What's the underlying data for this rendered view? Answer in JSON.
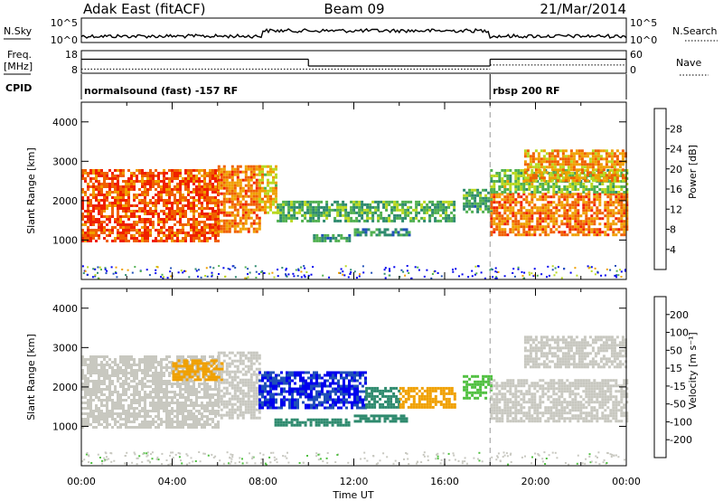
{
  "header": {
    "station": "Adak East (fitACF)",
    "beam": "Beam 09",
    "date": "21/Mar/2014"
  },
  "summary": {
    "nsky_label": "N.Sky",
    "nsearch_label": "N.Search",
    "freq_label": "Freq.",
    "freq_unit": "[MHz]",
    "nave_label": "Nave",
    "cpid_label": "CPID",
    "nsky_ticks": [
      "10^5",
      "10^0"
    ],
    "nsearch_ticks": [
      "10^5",
      "10^0"
    ],
    "freq_ticks": [
      "18",
      "8"
    ],
    "nave_ticks": [
      "60",
      "0"
    ],
    "cpid_segments": [
      {
        "label": "normalsound (fast) -157 RF",
        "start": 0,
        "end": 18
      },
      {
        "label": "rbsp 200 RF",
        "start": 18,
        "end": 24
      }
    ],
    "freq_series": [
      {
        "start": 0,
        "end": 10,
        "value": 14.2
      },
      {
        "start": 10,
        "end": 18,
        "value": 11.2
      },
      {
        "start": 18,
        "end": 24,
        "value": 14.2
      }
    ],
    "nave_series": [
      {
        "start": 0,
        "end": 18,
        "value": 11
      },
      {
        "start": 18,
        "end": 24,
        "value": 22
      }
    ]
  },
  "chart_data": [
    {
      "type": "heatmap",
      "parameter": "power",
      "ylabel": "Slant Range [km]",
      "xlabel": "",
      "xlim": [
        0,
        24
      ],
      "ylim": [
        0,
        4500
      ],
      "yticks": [
        "1000",
        "2000",
        "3000",
        "4000"
      ],
      "colorbar": {
        "label": "Power [dB]",
        "ticks": [
          "4",
          "8",
          "12",
          "16",
          "20",
          "24",
          "28"
        ],
        "range": [
          0,
          32
        ],
        "colors": [
          "#0000ee",
          "#2050b8",
          "#2e8a6e",
          "#50b050",
          "#b8d820",
          "#f0a000",
          "#f06000",
          "#f02000",
          "#e00000"
        ]
      },
      "echo_regions": [
        {
          "t0": 0.0,
          "t1": 6.0,
          "r0": 950,
          "r1": 2800,
          "level": 24
        },
        {
          "t0": 6.0,
          "t1": 7.8,
          "r0": 1200,
          "r1": 2900,
          "level": 22
        },
        {
          "t0": 7.8,
          "t1": 8.6,
          "r0": 1700,
          "r1": 2900,
          "level": 18
        },
        {
          "t0": 8.6,
          "t1": 16.4,
          "r0": 1450,
          "r1": 2000,
          "level": 12
        },
        {
          "t0": 10.2,
          "t1": 11.8,
          "r0": 1000,
          "r1": 1150,
          "level": 10
        },
        {
          "t0": 12.0,
          "t1": 14.5,
          "r0": 1150,
          "r1": 1300,
          "level": 9
        },
        {
          "t0": 16.8,
          "t1": 18.0,
          "r0": 1700,
          "r1": 2300,
          "level": 11
        },
        {
          "t0": 18.0,
          "t1": 24.0,
          "r0": 1100,
          "r1": 2200,
          "level": 22
        },
        {
          "t0": 18.0,
          "t1": 24.0,
          "r0": 2200,
          "r1": 2800,
          "level": 14
        },
        {
          "t0": 19.5,
          "t1": 24.0,
          "r0": 2500,
          "r1": 3300,
          "level": 20
        }
      ]
    },
    {
      "type": "heatmap",
      "parameter": "velocity",
      "ylabel": "Slant Range [km]",
      "xlabel": "Time UT",
      "xlim": [
        0,
        24
      ],
      "ylim": [
        0,
        4500
      ],
      "xticks": [
        "00:00",
        "04:00",
        "08:00",
        "12:00",
        "16:00",
        "20:00",
        "00:00"
      ],
      "yticks": [
        "1000",
        "2000",
        "3000",
        "4000"
      ],
      "colorbar": {
        "label": "Velocity [m s⁻¹]",
        "ticks": [
          "200",
          "100",
          "50",
          "15",
          "-15",
          "-50",
          "-100",
          "-200"
        ],
        "colors": [
          "#0000ee",
          "#2050b8",
          "#2e8a6e",
          "#50c040",
          "#c8c8c0",
          "#f0a000",
          "#f06000",
          "#f02000",
          "#e00000"
        ]
      },
      "echo_regions": [
        {
          "t0": 0.0,
          "t1": 6.0,
          "r0": 950,
          "r1": 2800,
          "level": 0
        },
        {
          "t0": 4.0,
          "t1": 6.2,
          "r0": 2200,
          "r1": 2700,
          "level": -40
        },
        {
          "t0": 6.0,
          "t1": 7.8,
          "r0": 1200,
          "r1": 2900,
          "level": 0
        },
        {
          "t0": 7.8,
          "t1": 12.5,
          "r0": 1450,
          "r1": 2400,
          "level": 200
        },
        {
          "t0": 12.5,
          "t1": 14.0,
          "r0": 1450,
          "r1": 2000,
          "level": 60
        },
        {
          "t0": 14.0,
          "t1": 16.4,
          "r0": 1450,
          "r1": 2000,
          "level": -40
        },
        {
          "t0": 8.5,
          "t1": 11.8,
          "r0": 1000,
          "r1": 1200,
          "level": 60
        },
        {
          "t0": 12.0,
          "t1": 14.5,
          "r0": 1150,
          "r1": 1300,
          "level": 60
        },
        {
          "t0": 16.8,
          "t1": 18.0,
          "r0": 1700,
          "r1": 2300,
          "level": 40
        },
        {
          "t0": 18.0,
          "t1": 24.0,
          "r0": 1100,
          "r1": 2200,
          "level": 0
        },
        {
          "t0": 19.5,
          "t1": 24.0,
          "r0": 2500,
          "r1": 3300,
          "level": 0
        }
      ]
    }
  ]
}
